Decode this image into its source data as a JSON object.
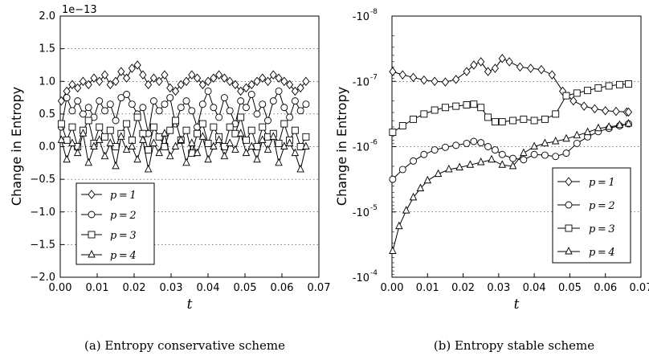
{
  "chart_data": [
    {
      "type": "line",
      "caption": "(a) Entropy conservative scheme",
      "xlabel": "t",
      "ylabel": "Change in Entropy",
      "y_offset_label": "1e−13",
      "xlim": [
        0,
        0.07
      ],
      "ylim": [
        -2.0,
        2.0
      ],
      "x_ticks": [
        "0.00",
        "0.01",
        "0.02",
        "0.03",
        "0.04",
        "0.05",
        "0.06",
        "0.07"
      ],
      "y_ticks": [
        "2.0",
        "1.5",
        "1.0",
        "0.5",
        "0.0",
        "−0.5",
        "−1.0",
        "−1.5",
        "−2.0"
      ],
      "y_tick_values": [
        2.0,
        1.5,
        1.0,
        0.5,
        0.0,
        -0.5,
        -1.0,
        -1.5,
        -2.0
      ],
      "grid": "horizontal dotted",
      "legend_position": "bottom-left",
      "series": [
        {
          "name": "p = 1",
          "marker": "diamond",
          "values": [
            0.7,
            0.85,
            0.95,
            0.9,
            1.0,
            0.95,
            1.05,
            1.0,
            1.1,
            0.95,
            1.0,
            1.15,
            1.05,
            1.2,
            1.25,
            1.1,
            0.95,
            1.05,
            1.0,
            1.1,
            0.9,
            0.85,
            0.95,
            1.0,
            1.1,
            1.05,
            0.95,
            1.0,
            1.05,
            1.1,
            1.05,
            1.0,
            0.95,
            0.85,
            0.9,
            0.95,
            1.0,
            1.05,
            1.0,
            1.1,
            1.05,
            1.0,
            0.95,
            0.85,
            0.9,
            1.0
          ]
        },
        {
          "name": "p = 2",
          "marker": "circle",
          "values": [
            0.3,
            0.75,
            0.55,
            0.7,
            0.5,
            0.6,
            0.45,
            0.7,
            0.55,
            0.65,
            0.4,
            0.75,
            0.8,
            0.65,
            0.5,
            0.6,
            0.2,
            0.7,
            0.55,
            0.65,
            0.75,
            0.35,
            0.6,
            0.7,
            0.55,
            0.3,
            0.65,
            0.85,
            0.6,
            0.45,
            0.75,
            0.55,
            0.35,
            0.7,
            0.6,
            0.8,
            0.5,
            0.65,
            0.4,
            0.7,
            0.85,
            0.6,
            0.45,
            0.7,
            0.55,
            0.65
          ]
        },
        {
          "name": "p = 3",
          "marker": "square",
          "values": [
            0.35,
            0.1,
            0.3,
            0.0,
            0.25,
            0.4,
            0.05,
            0.3,
            0.15,
            0.25,
            0.0,
            0.2,
            0.35,
            0.1,
            0.45,
            0.2,
            -0.05,
            0.3,
            0.15,
            0.0,
            0.25,
            0.4,
            0.1,
            0.25,
            -0.1,
            0.2,
            0.35,
            0.05,
            0.3,
            0.15,
            0.0,
            0.3,
            0.2,
            0.45,
            0.1,
            0.25,
            0.0,
            0.3,
            0.15,
            0.2,
            0.05,
            0.35,
            0.1,
            0.25,
            0.0,
            0.15
          ]
        },
        {
          "name": "p = 4",
          "marker": "triangle",
          "values": [
            0.1,
            -0.2,
            0.05,
            -0.1,
            0.2,
            -0.25,
            0.0,
            0.1,
            -0.15,
            0.05,
            -0.3,
            0.15,
            -0.05,
            0.0,
            -0.2,
            0.1,
            -0.35,
            0.05,
            -0.1,
            0.2,
            -0.15,
            0.0,
            0.1,
            -0.25,
            0.05,
            -0.1,
            0.15,
            -0.2,
            0.0,
            0.1,
            -0.15,
            0.05,
            -0.05,
            0.2,
            -0.1,
            0.0,
            -0.2,
            0.1,
            -0.05,
            0.15,
            -0.25,
            0.0,
            0.05,
            -0.1,
            -0.35,
            0.0
          ]
        }
      ]
    },
    {
      "type": "line",
      "caption": "(b) Entropy stable scheme",
      "xlabel": "t",
      "ylabel": "Change in Entropy",
      "y_scale": "symlog (negative, log magnitude)",
      "xlim": [
        0,
        0.07
      ],
      "ylim_exponent": [
        -8,
        -4
      ],
      "x_ticks": [
        "0.00",
        "0.01",
        "0.02",
        "0.03",
        "0.04",
        "0.05",
        "0.06",
        "0.07"
      ],
      "y_ticks": [
        {
          "base": "-10",
          "exp": "-8"
        },
        {
          "base": "-10",
          "exp": "-7"
        },
        {
          "base": "-10",
          "exp": "-6"
        },
        {
          "base": "-10",
          "exp": "-5"
        },
        {
          "base": "-10",
          "exp": "-4"
        }
      ],
      "grid": "horizontal dotted",
      "legend_position": "bottom-right",
      "series": [
        {
          "name": "p = 1",
          "marker": "diamond",
          "x": [
            0.0002,
            0.003,
            0.006,
            0.009,
            0.012,
            0.015,
            0.018,
            0.021,
            0.023,
            0.025,
            0.027,
            0.029,
            0.031,
            0.033,
            0.036,
            0.039,
            0.042,
            0.045,
            0.048,
            0.051,
            0.054,
            0.057,
            0.06,
            0.063,
            0.066,
            0.0665
          ],
          "values": [
            -7.15,
            -7.1,
            -7.06,
            -7.02,
            -7.0,
            -6.99,
            -7.03,
            -7.15,
            -7.25,
            -7.3,
            -7.15,
            -7.2,
            -7.35,
            -7.3,
            -7.22,
            -7.2,
            -7.18,
            -7.1,
            -6.85,
            -6.7,
            -6.62,
            -6.58,
            -6.55,
            -6.54,
            -6.53,
            -6.53
          ]
        },
        {
          "name": "p = 2",
          "marker": "circle",
          "x": [
            0.0002,
            0.003,
            0.006,
            0.009,
            0.012,
            0.015,
            0.018,
            0.021,
            0.023,
            0.025,
            0.027,
            0.029,
            0.031,
            0.034,
            0.037,
            0.04,
            0.043,
            0.046,
            0.049,
            0.052,
            0.055,
            0.058,
            0.061,
            0.064,
            0.0665
          ],
          "values": [
            -5.5,
            -5.65,
            -5.78,
            -5.88,
            -5.95,
            -5.99,
            -6.02,
            -6.05,
            -6.08,
            -6.06,
            -6.0,
            -5.95,
            -5.88,
            -5.82,
            -5.8,
            -5.88,
            -5.87,
            -5.85,
            -5.9,
            -6.05,
            -6.15,
            -6.23,
            -6.28,
            -6.32,
            -6.35
          ]
        },
        {
          "name": "p = 3",
          "marker": "square",
          "x": [
            0.0002,
            0.003,
            0.006,
            0.009,
            0.012,
            0.015,
            0.018,
            0.021,
            0.023,
            0.025,
            0.027,
            0.029,
            0.031,
            0.034,
            0.037,
            0.04,
            0.043,
            0.046,
            0.049,
            0.052,
            0.055,
            0.058,
            0.061,
            0.064,
            0.0665
          ],
          "values": [
            -6.22,
            -6.32,
            -6.42,
            -6.5,
            -6.56,
            -6.6,
            -6.62,
            -6.64,
            -6.65,
            -6.6,
            -6.45,
            -6.38,
            -6.38,
            -6.4,
            -6.42,
            -6.4,
            -6.42,
            -6.5,
            -6.78,
            -6.82,
            -6.86,
            -6.9,
            -6.93,
            -6.95,
            -6.96
          ]
        },
        {
          "name": "p = 4",
          "marker": "triangle",
          "x": [
            0.0002,
            0.002,
            0.004,
            0.006,
            0.008,
            0.01,
            0.013,
            0.016,
            0.019,
            0.022,
            0.025,
            0.028,
            0.031,
            0.034,
            0.037,
            0.04,
            0.043,
            0.046,
            0.049,
            0.052,
            0.055,
            0.058,
            0.061,
            0.064,
            0.0665
          ],
          "values": [
            -4.4,
            -4.78,
            -5.02,
            -5.22,
            -5.36,
            -5.48,
            -5.58,
            -5.65,
            -5.68,
            -5.72,
            -5.76,
            -5.8,
            -5.72,
            -5.7,
            -5.9,
            -6.0,
            -6.05,
            -6.08,
            -6.12,
            -6.17,
            -6.22,
            -6.28,
            -6.3,
            -6.33,
            -6.35
          ]
        }
      ]
    }
  ]
}
